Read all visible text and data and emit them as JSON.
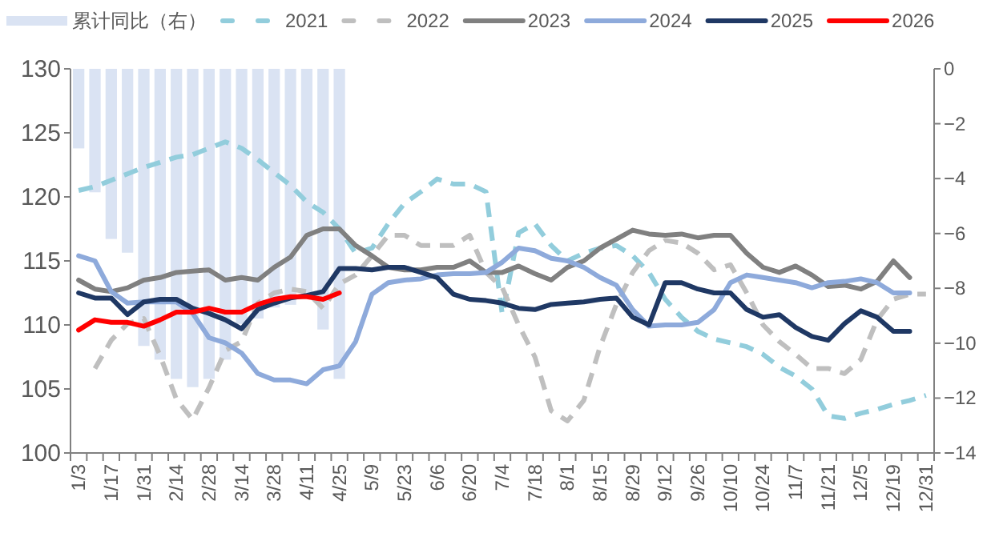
{
  "chart_data": {
    "type": "line",
    "categories": [
      "1/3",
      null,
      "1/17",
      null,
      "1/31",
      null,
      "2/14",
      null,
      "2/28",
      null,
      "3/14",
      null,
      "3/28",
      null,
      "4/11",
      null,
      "4/25",
      null,
      "5/9",
      null,
      "5/23",
      null,
      "6/6",
      null,
      "6/20",
      null,
      "7/4",
      null,
      "7/18",
      null,
      "8/1",
      null,
      "8/15",
      null,
      "8/29",
      null,
      "9/12",
      null,
      "9/26",
      null,
      "10/10",
      null,
      "10/24",
      null,
      "11/7",
      null,
      "11/21",
      null,
      "12/5",
      null,
      "12/19",
      null,
      "12/31"
    ],
    "series": [
      {
        "name": "累计同比（右）",
        "type": "bar",
        "axis": "y2",
        "color": "#dae3f3",
        "values": [
          -2.9,
          -4.5,
          -6.2,
          -6.7,
          -10.1,
          -10.6,
          -11.3,
          -11.6,
          -11.3,
          -10.6,
          -9.3,
          -9.1,
          -8.7,
          -8.6,
          -8.3,
          -9.5,
          -11.3,
          null,
          null,
          null,
          null,
          null,
          null,
          null,
          null,
          null,
          null,
          null,
          null,
          null,
          null,
          null,
          null,
          null,
          null,
          null,
          null,
          null,
          null,
          null,
          null,
          null,
          null,
          null,
          null,
          null,
          null,
          null,
          null,
          null,
          null,
          null,
          null
        ]
      },
      {
        "name": "2021",
        "color": "#92cddc",
        "line_style": "dashed",
        "values": [
          120.5,
          120.8,
          121.3,
          121.8,
          122.3,
          122.7,
          123.1,
          123.3,
          123.8,
          124.3,
          123.8,
          122.9,
          121.9,
          120.9,
          119.6,
          118.8,
          117.5,
          115.6,
          116.0,
          117.9,
          119.5,
          120.4,
          121.4,
          121.0,
          121.0,
          120.4,
          110.8,
          117.2,
          117.9,
          116.2,
          115.0,
          115.6,
          116.0,
          116.2,
          115.4,
          114.1,
          112.0,
          110.6,
          109.5,
          108.9,
          108.6,
          108.3,
          107.7,
          106.7,
          106.0,
          105.0,
          102.9,
          102.7,
          103.1,
          103.4,
          103.8,
          104.1,
          104.5
        ]
      },
      {
        "name": "2022",
        "color": "#bfbfbf",
        "line_style": "dashed",
        "values": [
          null,
          106.6,
          108.8,
          110.1,
          110.5,
          107.6,
          104.2,
          102.6,
          105.1,
          108.0,
          108.7,
          111.7,
          112.5,
          112.8,
          112.6,
          111.3,
          113.2,
          113.9,
          115.4,
          117.0,
          117.0,
          116.2,
          116.2,
          116.2,
          117.0,
          114.1,
          112.9,
          110.0,
          107.5,
          103.3,
          102.5,
          104.1,
          108.3,
          111.6,
          114.1,
          115.8,
          116.6,
          116.4,
          115.6,
          114.3,
          114.7,
          112.5,
          110.0,
          108.7,
          107.7,
          106.6,
          106.6,
          106.2,
          107.3,
          110.4,
          112.0,
          112.4,
          112.4
        ]
      },
      {
        "name": "2023",
        "color": "#808080",
        "values": [
          113.5,
          112.8,
          112.6,
          112.9,
          113.5,
          113.7,
          114.1,
          114.2,
          114.3,
          113.5,
          113.7,
          113.5,
          114.5,
          115.3,
          117.0,
          117.5,
          117.5,
          116.2,
          115.4,
          114.5,
          114.3,
          114.3,
          114.5,
          114.5,
          115.0,
          114.1,
          114.1,
          114.6,
          114.0,
          113.5,
          114.5,
          115.0,
          116.0,
          116.7,
          117.4,
          117.1,
          117.0,
          117.1,
          116.8,
          117.0,
          117.0,
          115.6,
          114.5,
          114.1,
          114.6,
          113.9,
          113.0,
          113.1,
          112.8,
          113.4,
          115.0,
          113.7,
          null
        ]
      },
      {
        "name": "2024",
        "color": "#8eaadb",
        "values": [
          115.4,
          115.0,
          112.6,
          111.7,
          111.8,
          111.8,
          111.8,
          110.9,
          109.0,
          108.6,
          107.8,
          106.2,
          105.7,
          105.7,
          105.4,
          106.5,
          106.8,
          108.7,
          112.4,
          113.3,
          113.5,
          113.6,
          113.9,
          114.0,
          114.0,
          114.1,
          114.9,
          116.0,
          115.8,
          115.2,
          115.0,
          114.5,
          113.7,
          113.1,
          111.2,
          109.9,
          110.0,
          110.0,
          110.2,
          111.2,
          113.3,
          113.9,
          113.7,
          113.5,
          113.3,
          112.9,
          113.3,
          113.4,
          113.6,
          113.3,
          112.5,
          112.5,
          null
        ]
      },
      {
        "name": "2025",
        "color": "#1f3864",
        "values": [
          112.5,
          112.1,
          112.1,
          110.8,
          111.8,
          112.0,
          112.0,
          111.3,
          110.9,
          110.4,
          109.7,
          111.2,
          111.7,
          112.1,
          112.3,
          112.6,
          114.4,
          114.4,
          114.3,
          114.5,
          114.5,
          114.1,
          113.7,
          112.4,
          112.0,
          111.9,
          111.7,
          111.3,
          111.2,
          111.6,
          111.7,
          111.8,
          112.0,
          112.1,
          110.6,
          110.0,
          113.3,
          113.3,
          112.8,
          112.5,
          112.5,
          111.2,
          110.6,
          110.8,
          109.8,
          109.1,
          108.8,
          110.1,
          111.1,
          110.6,
          109.5,
          109.5,
          null
        ]
      },
      {
        "name": "2026",
        "color": "#ff0000",
        "values": [
          109.6,
          110.4,
          110.2,
          110.2,
          109.9,
          110.4,
          111.0,
          111.0,
          111.3,
          111.0,
          111.0,
          111.6,
          112.0,
          112.2,
          112.2,
          112.0,
          112.5,
          null,
          null,
          null,
          null,
          null,
          null,
          null,
          null,
          null,
          null,
          null,
          null,
          null,
          null,
          null,
          null,
          null,
          null,
          null,
          null,
          null,
          null,
          null,
          null,
          null,
          null,
          null,
          null,
          null,
          null,
          null,
          null,
          null,
          null,
          null,
          null
        ]
      }
    ],
    "ylim": [
      100,
      130
    ],
    "yticks": [
      100,
      105,
      110,
      115,
      120,
      125,
      130
    ],
    "y2lim": [
      -14,
      0
    ],
    "y2ticks": [
      -14,
      -12,
      -10,
      -8,
      -6,
      -4,
      -2,
      0
    ],
    "legend": "top"
  }
}
